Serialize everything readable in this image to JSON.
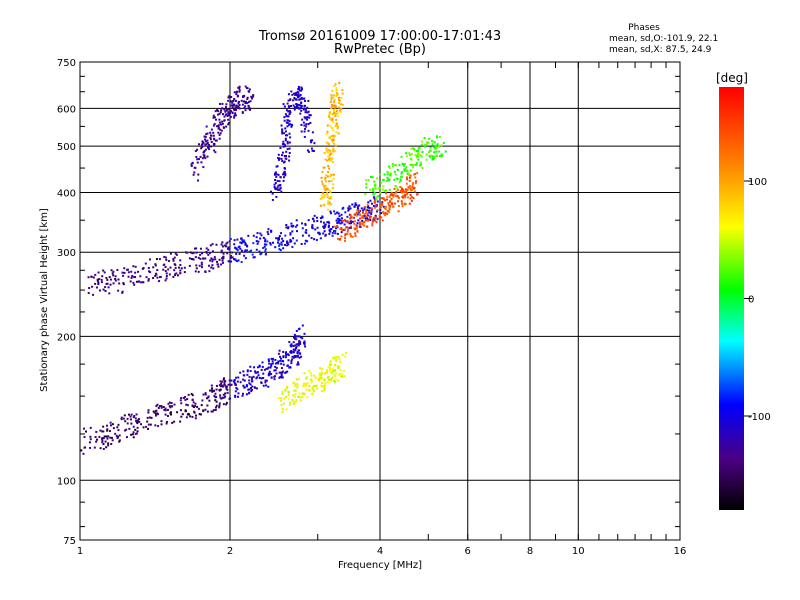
{
  "chart_data": {
    "type": "scatter",
    "title": "Tromsø 20161009 17:00:00-17:01:43",
    "subtitle": "RwPretec (Bp)",
    "xlabel": "Frequency [MHz]",
    "ylabel": "Stationary phase Virtual Height [km]",
    "xscale": "log",
    "yscale": "log",
    "xlim": [
      1,
      16
    ],
    "ylim": [
      75,
      750
    ],
    "xticks": [
      1,
      2,
      4,
      6,
      8,
      10,
      16
    ],
    "xtick_labels": [
      "1",
      "2",
      "4",
      "6",
      "8",
      "10",
      "16"
    ],
    "yticks": [
      75,
      100,
      200,
      300,
      400,
      500,
      600,
      750
    ],
    "ytick_labels": [
      "75",
      "100",
      "200",
      "300",
      "400",
      "500",
      "600",
      "750"
    ],
    "grid": true,
    "info": {
      "header": "Phases",
      "line1": "mean, sd,O:-101.9, 22.1",
      "line2": "mean, sd,X:  87.5, 24.9"
    },
    "colorbar": {
      "label": "[deg]",
      "ticks": [
        100,
        0,
        -100
      ],
      "tick_labels": [
        "100",
        "0",
        "-100"
      ],
      "range": [
        -180,
        180
      ]
    },
    "traces": [
      {
        "x": [
          1.0,
          1.15,
          1.3,
          1.5,
          1.7,
          1.9,
          2.0
        ],
        "y": [
          120,
          125,
          132,
          138,
          143,
          150,
          156
        ],
        "phase": -145
      },
      {
        "x": [
          2.0,
          2.2,
          2.4,
          2.55,
          2.7,
          2.8
        ],
        "y": [
          156,
          162,
          168,
          175,
          185,
          200
        ],
        "phase": -110
      },
      {
        "x": [
          2.55,
          2.75,
          3.0,
          3.2,
          3.35
        ],
        "y": [
          145,
          155,
          162,
          168,
          175
        ],
        "phase": 60
      },
      {
        "x": [
          1.05,
          1.2,
          1.4,
          1.6,
          1.8,
          2.0
        ],
        "y": [
          255,
          262,
          275,
          285,
          290,
          300
        ],
        "phase": -135
      },
      {
        "x": [
          2.0,
          2.2,
          2.5,
          2.8,
          3.1,
          3.4,
          3.7,
          4.0
        ],
        "y": [
          300,
          308,
          320,
          330,
          340,
          350,
          362,
          375
        ],
        "phase": -100
      },
      {
        "x": [
          3.3,
          3.6,
          3.9,
          4.2,
          4.5,
          4.7
        ],
        "y": [
          330,
          345,
          362,
          380,
          400,
          420
        ],
        "phase": 140
      },
      {
        "x": [
          2.45,
          2.55,
          2.6,
          2.7,
          2.8,
          2.9
        ],
        "y": [
          390,
          460,
          560,
          640,
          620,
          500
        ],
        "phase": -110
      },
      {
        "x": [
          3.1,
          3.15,
          3.2,
          3.25,
          3.3
        ],
        "y": [
          380,
          440,
          520,
          600,
          650
        ],
        "phase": 90
      },
      {
        "x": [
          1.7,
          1.8,
          1.9,
          2.0,
          2.1,
          2.2
        ],
        "y": [
          450,
          500,
          560,
          600,
          620,
          640
        ],
        "phase": -130
      },
      {
        "x": [
          3.8,
          4.2,
          4.6,
          5.0,
          5.3
        ],
        "y": [
          400,
          430,
          460,
          490,
          500
        ],
        "phase": 20
      }
    ]
  }
}
